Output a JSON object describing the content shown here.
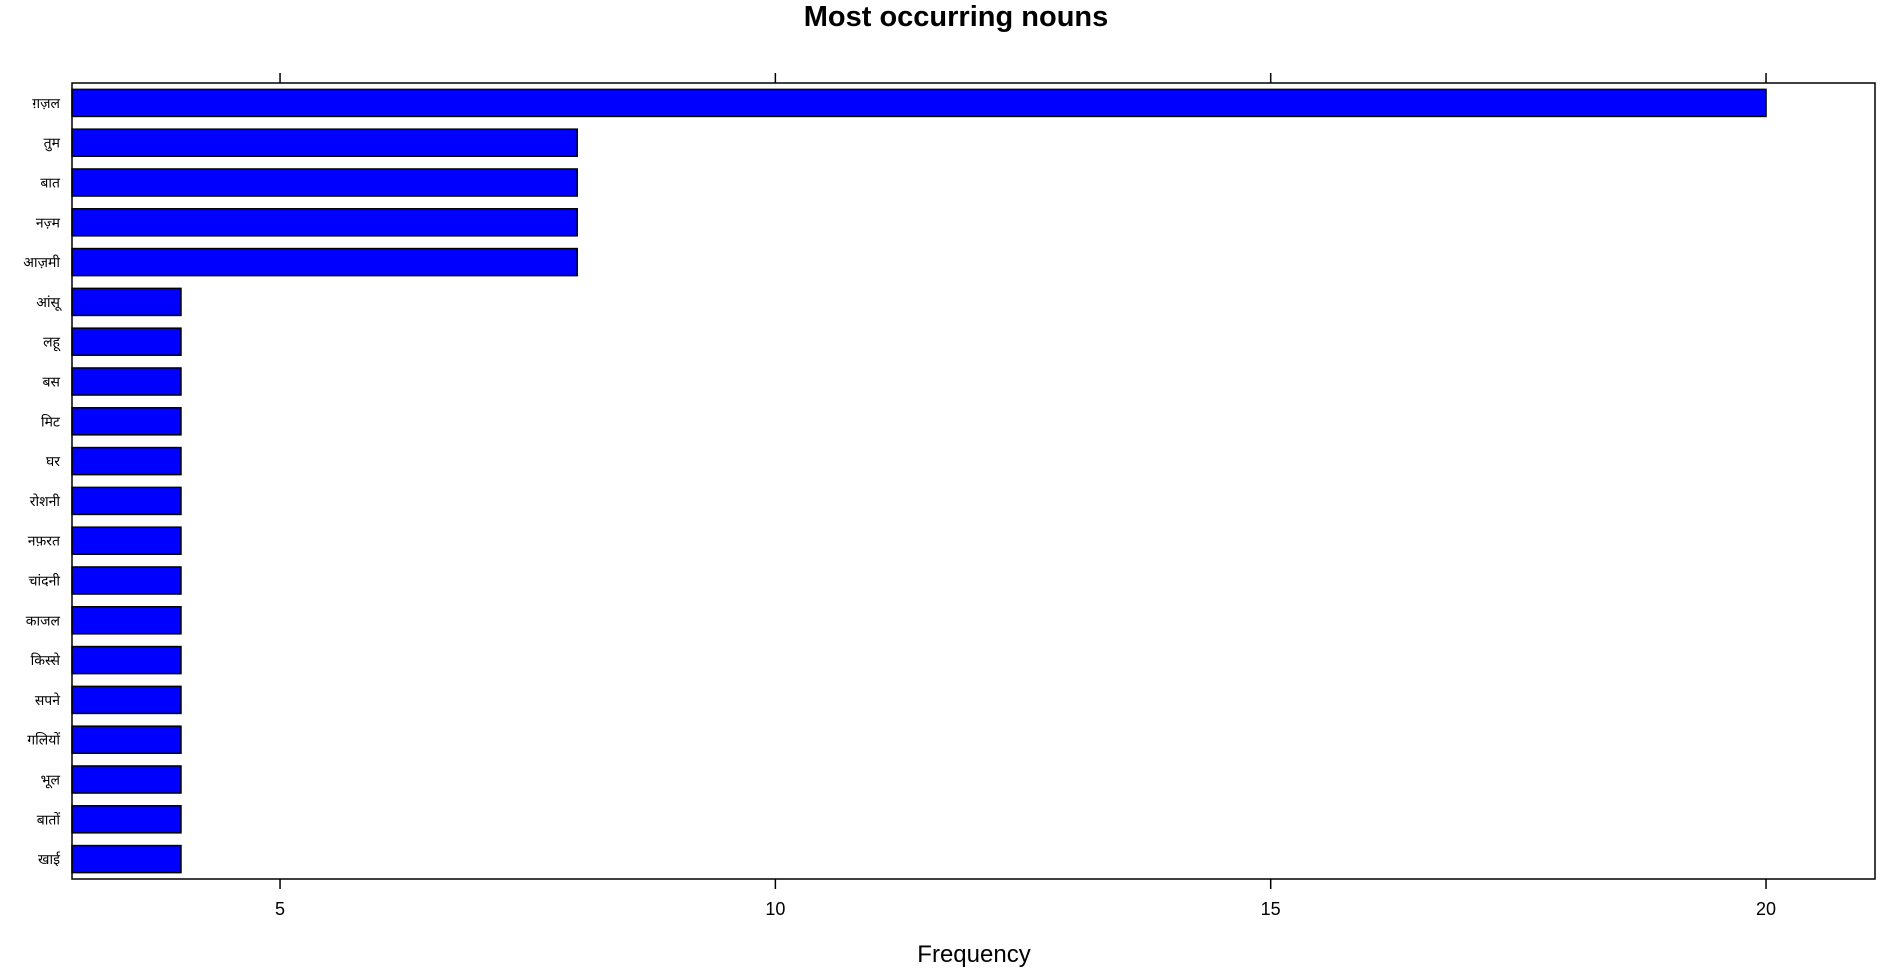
{
  "chart_data": {
    "type": "bar",
    "orientation": "horizontal",
    "title": "Most occurring nouns",
    "xlabel": "Frequency",
    "ylabel": "",
    "categories": [
      "ग़ज़ल",
      "तुम",
      "बात",
      "नज़्म",
      "आज़मी",
      "आंसू",
      "लहू",
      "बस",
      "मिट",
      "घर",
      "रोशनी",
      "नफ़रत",
      "चांदनी",
      "काजल",
      "किस्से",
      "सपने",
      "गलियों",
      "भूल",
      "बातों",
      "खाई"
    ],
    "values": [
      20,
      8,
      8,
      8,
      8,
      4,
      4,
      4,
      4,
      4,
      4,
      4,
      4,
      4,
      4,
      4,
      4,
      4,
      4,
      4
    ],
    "xlim": [
      2.9,
      21.1
    ],
    "xticks": [
      5,
      10,
      15,
      20
    ],
    "bar_color": "#0000FF",
    "grid": false,
    "legend": "none"
  }
}
